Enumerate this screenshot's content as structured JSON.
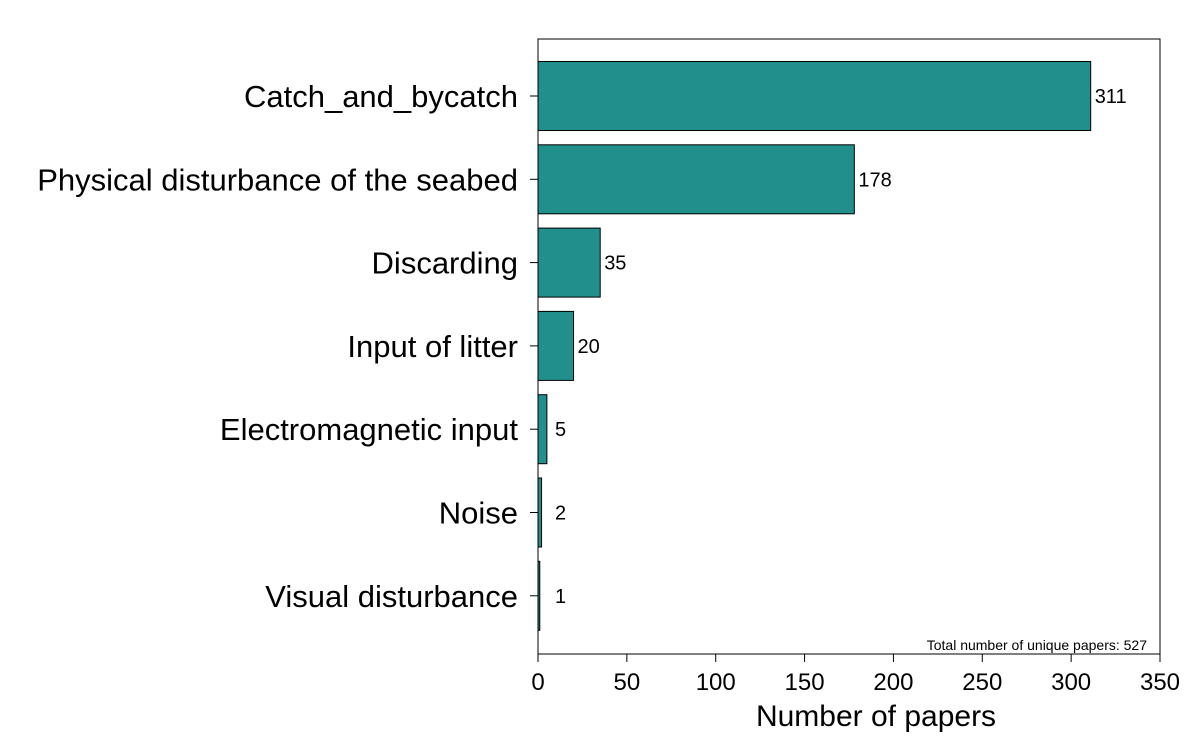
{
  "chart_data": {
    "type": "bar",
    "orientation": "horizontal",
    "categories": [
      "Catch_and_bycatch",
      "Physical disturbance of the seabed",
      "Discarding",
      "Input of litter",
      "Electromagnetic input",
      "Noise",
      "Visual disturbance"
    ],
    "values": [
      311,
      178,
      35,
      20,
      5,
      2,
      1
    ],
    "data_labels": [
      "311",
      "178",
      "35",
      "20",
      "5",
      "2",
      "1"
    ],
    "title": "",
    "xlabel": "Number of papers",
    "ylabel": "",
    "xlim": [
      0,
      350
    ],
    "xticks": [
      0,
      50,
      100,
      150,
      200,
      250,
      300,
      350
    ],
    "bar_color": "#21908c",
    "edge_color": "#000000",
    "grid": false,
    "annotation": "Total number of unique papers: 527"
  }
}
